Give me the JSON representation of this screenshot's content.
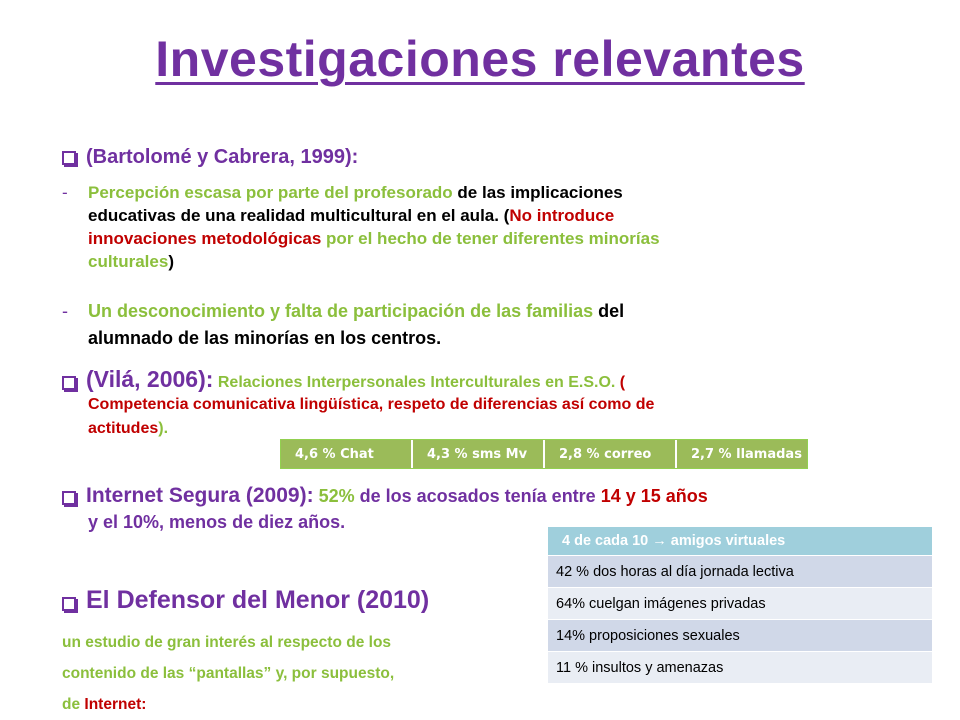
{
  "title": "Investigaciones relevantes",
  "section1": {
    "heading": "(Bartolomé y Cabrera, 1999):",
    "item1": {
      "dash": "-",
      "l1a": "Percepción escasa por parte del profesorado",
      "l1b": " de las implicaciones",
      "l2": "educativas de una realidad multicultural en el aula. (",
      "l2b": "No introduce",
      "l3a": "innovaciones metodológicas",
      "l3b": " por el hecho de tener diferentes minorías",
      "l4a": "culturales",
      "l4b": ")"
    },
    "item2": {
      "dash": "-",
      "l1a": "Un desconocimiento y falta de participación de las familias",
      "l1b": " del",
      "l2": "alumnado de las minorías en los centros."
    }
  },
  "section2": {
    "heading": "(Vilá, 2006):",
    "l1a": " Relaciones Interpersonales Interculturales en E.S.O.",
    "l1b": " (",
    "l2": "Competencia comunicativa lingüística, respeto de diferencias así como de",
    "l3a": "actitudes",
    "l3b": ")."
  },
  "green_table": [
    "4,6 % Chat",
    "4,3 % sms Mv",
    "2,8 % correo",
    "2,7 % llamadas"
  ],
  "section3": {
    "heading": "Internet Segura (2009):",
    "l1a": " 52%",
    "l1b": " de los acosados tenía entre",
    "l1c": " 14 y 15 años",
    "l2": "y el 10%, menos de diez años."
  },
  "section4": {
    "heading": "El Defensor del Menor (2010)",
    "l1": "un estudio de gran interés al respecto de los",
    "l2": "contenido de las “pantallas” y, por supuesto,",
    "l3a": "de ",
    "l3b": "Internet:"
  },
  "blue_table": {
    "header": "4 de cada 10 → amigos virtuales",
    "rows": [
      "42 % dos horas al día jornada lectiva",
      "64% cuelgan imágenes privadas",
      "14% proposiciones sexuales",
      "11 % insultos y amenazas"
    ]
  },
  "colors": {
    "purple": "#7030a0",
    "green": "#8bbf3c",
    "red": "#c00000",
    "table_green": "#9bbb59",
    "table_blue_header": "#9fcfdc",
    "table_row_dark": "#d0d8e8",
    "table_row_light": "#e9edf4"
  }
}
